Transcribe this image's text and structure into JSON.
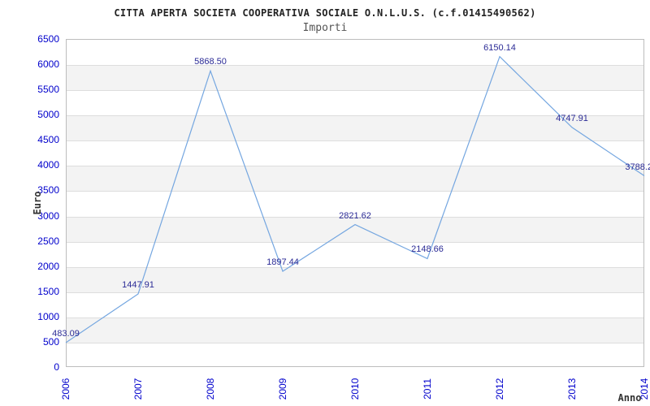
{
  "header": {
    "title": "CITTA APERTA SOCIETA COOPERATIVA SOCIALE O.N.L.U.S. (c.f.01415490562)",
    "subtitle": "Importi"
  },
  "chart_data": {
    "type": "line",
    "title": "CITTA APERTA SOCIETA COOPERATIVA SOCIALE O.N.L.U.S. (c.f.01415490562)",
    "subtitle": "Importi",
    "xlabel": "Anno",
    "ylabel": "Euro",
    "categories": [
      "2006",
      "2007",
      "2008",
      "2009",
      "2010",
      "2011",
      "2012",
      "2013",
      "2014"
    ],
    "values": [
      483.09,
      1447.91,
      5868.5,
      1897.44,
      2821.62,
      2148.66,
      6150.14,
      4747.91,
      3788.2
    ],
    "point_labels": [
      "483.09",
      "1447.91",
      "5868.50",
      "1897.44",
      "2821.62",
      "2148.66",
      "6150.14",
      "4747.91",
      "3788.2"
    ],
    "yticks": [
      "0",
      "500",
      "1000",
      "1500",
      "2000",
      "2500",
      "3000",
      "3500",
      "4000",
      "4500",
      "5000",
      "5500",
      "6000",
      "6500"
    ],
    "ylim": [
      0,
      6500
    ],
    "ytick_step": 500,
    "grid": "alternating-horizontal-bands",
    "legend": "none",
    "colors": {
      "line": "#74a6e0",
      "tick_text": "#0000cc",
      "point_label_text": "#2b2b96",
      "band": "#f3f3f3",
      "gridline": "#dddddd",
      "plot_border": "#bdbdbd",
      "title_text": "#222222",
      "subtitle_text": "#555555",
      "axis_title_text": "#333333"
    }
  }
}
